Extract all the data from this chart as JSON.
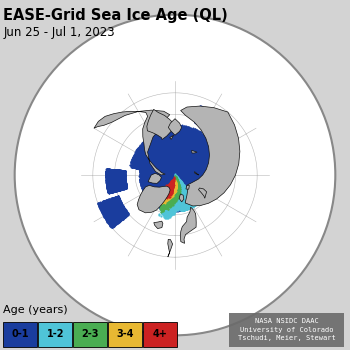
{
  "title": "EASE-Grid Sea Ice Age (QL)",
  "subtitle": "Jun 25 - Jul 1, 2023",
  "title_fontsize": 10.5,
  "subtitle_fontsize": 8.5,
  "fig_bg_color": "#d3d3d3",
  "land_color": "#b4b4b4",
  "ocean_color": "#ffffff",
  "ice_colors": {
    "0-1": "#1a3d9e",
    "1-2": "#4fc4d8",
    "2-3": "#4aad52",
    "3-4": "#e8b832",
    "4+": "#cc2222"
  },
  "legend_labels": [
    "0-1",
    "1-2",
    "2-3",
    "3-4",
    "4+"
  ],
  "legend_colors": [
    "#1a3d9e",
    "#4fc4d8",
    "#4aad52",
    "#e8b832",
    "#cc2222"
  ],
  "legend_title": "Age (years)",
  "legend_fontsize": 8,
  "legend_label_fontsize": 7,
  "credit_text": "NASA NSIDC DAAC\nUniversity of Colorado\nTschudi, Meier, Stewart",
  "credit_fontsize": 5.0,
  "credit_bg": "#6a6a6a",
  "credit_color": "#ffffff",
  "coastline_color": "#111111",
  "coastline_lw": 0.5,
  "gridline_color": "#999999",
  "gridline_lw": 0.4,
  "border_color": "#888888",
  "border_lw": 1.5
}
